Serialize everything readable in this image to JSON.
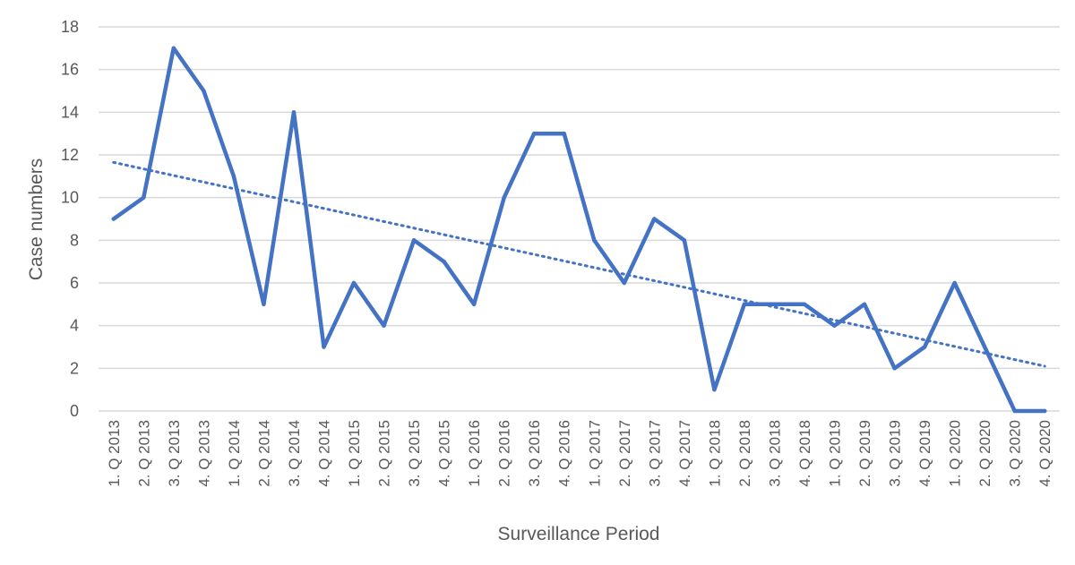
{
  "chart_data": {
    "type": "line",
    "title": "",
    "xlabel": "Surveillance Period",
    "ylabel": "Case numbers",
    "ylim": [
      0,
      18
    ],
    "yticks": [
      0,
      2,
      4,
      6,
      8,
      10,
      12,
      14,
      16,
      18
    ],
    "grid": true,
    "categories": [
      "1. Q 2013",
      "2. Q 2013",
      "3. Q 2013",
      "4. Q 2013",
      "1. Q 2014",
      "2. Q 2014",
      "3. Q 2014",
      "4. Q 2014",
      "1. Q 2015",
      "2. Q 2015",
      "3. Q 2015",
      "4. Q 2015",
      "1. Q 2016",
      "2. Q 2016",
      "3. Q 2016",
      "4. Q 2016",
      "1. Q 2017",
      "2. Q 2017",
      "3. Q 2017",
      "4. Q 2017",
      "1. Q 2018",
      "2. Q 2018",
      "3. Q 2018",
      "4. Q 2018",
      "1. Q 2019",
      "2. Q 2019",
      "3. Q 2019",
      "4. Q 2019",
      "1. Q 2020",
      "2. Q 2020",
      "3. Q 2020",
      "4. Q 2020"
    ],
    "series": [
      {
        "values": [
          9,
          10,
          17,
          15,
          11,
          5,
          14,
          3,
          6,
          4,
          8,
          7,
          5,
          10,
          13,
          13,
          8,
          6,
          9,
          8,
          1,
          5,
          5,
          5,
          4,
          5,
          2,
          3,
          6,
          3,
          0,
          0
        ],
        "color": "#4472c4",
        "style": "solid"
      }
    ],
    "trendline": {
      "type": "linear",
      "start": 11.65,
      "end": 2.1,
      "color": "#4472c4",
      "style": "dotted"
    }
  }
}
